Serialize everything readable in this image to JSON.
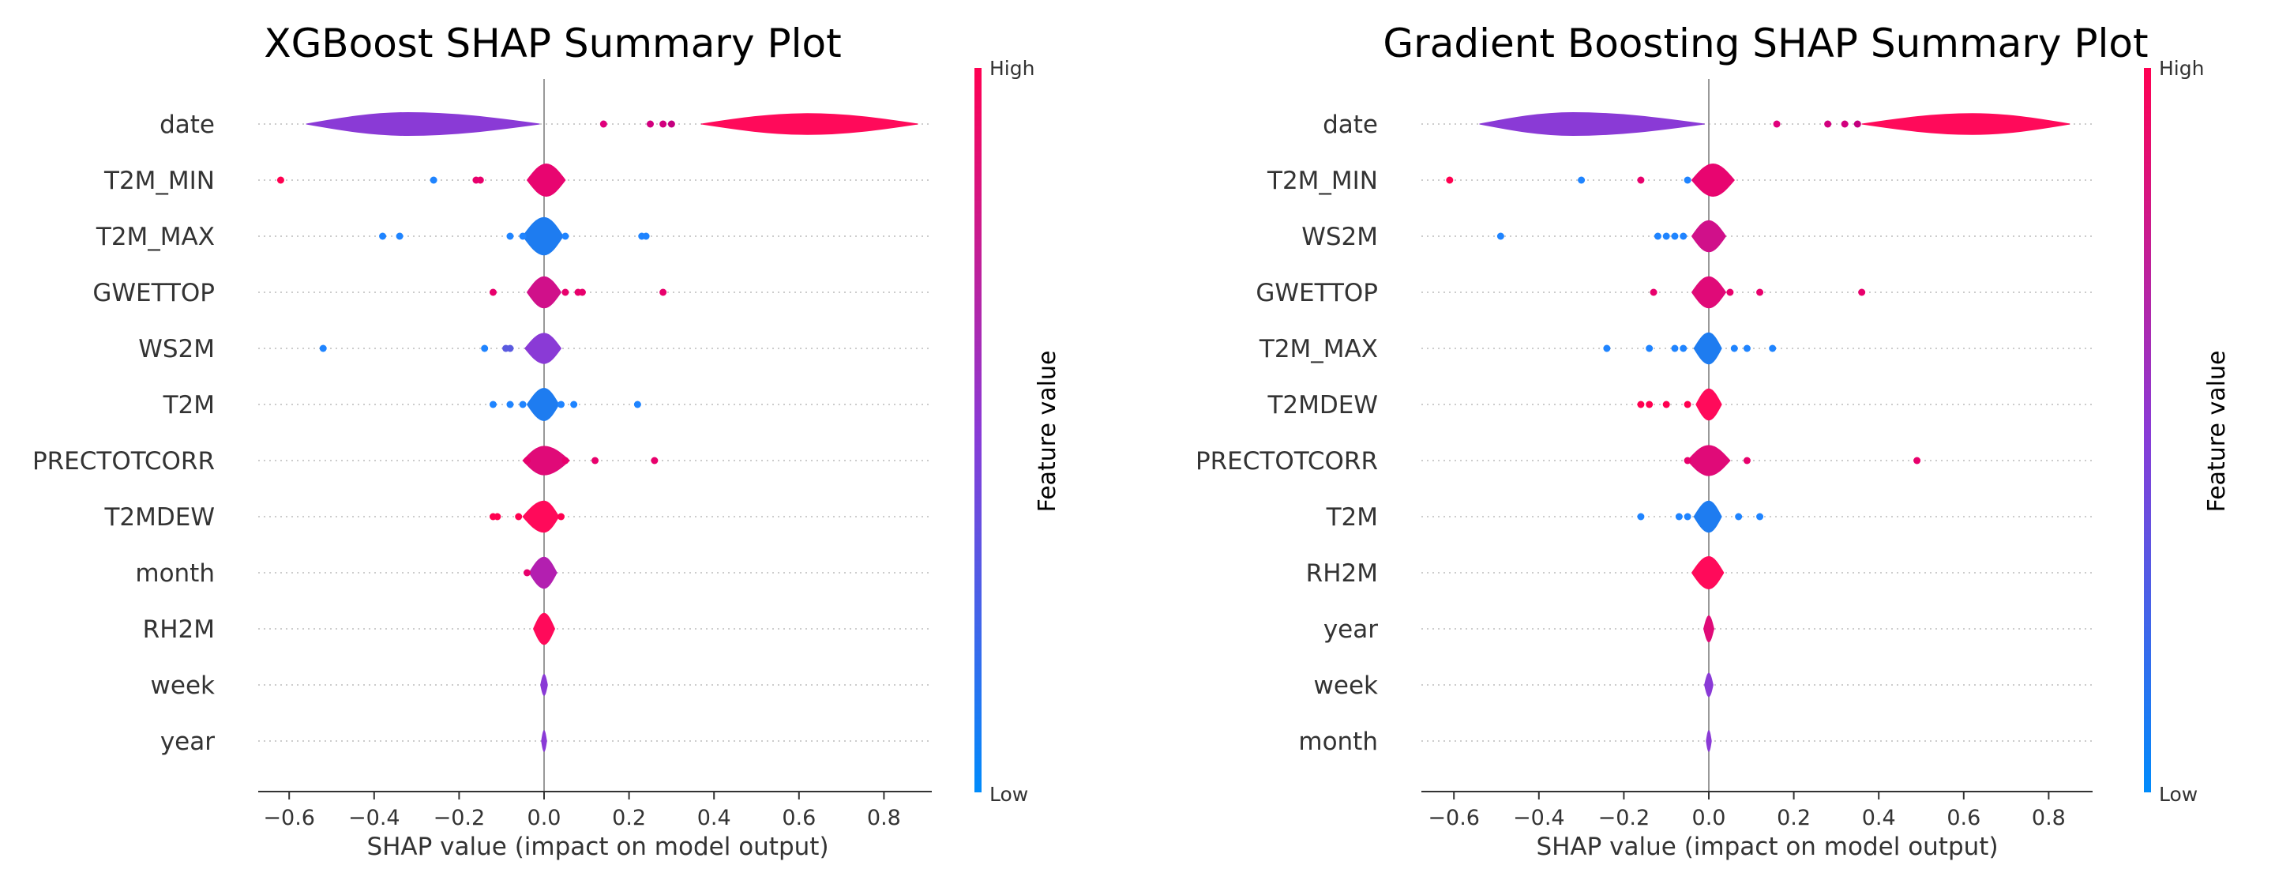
{
  "chart_data": [
    {
      "type": "violin",
      "title": "XGBoost SHAP Summary Plot",
      "xlabel": "SHAP value (impact on model output)",
      "xlim": [
        -0.7,
        0.95
      ],
      "xticks": [
        "−0.6",
        "−0.4",
        "−0.2",
        "0.0",
        "0.2",
        "0.4",
        "0.6",
        "0.8"
      ],
      "xtick_values": [
        -0.6,
        -0.4,
        -0.2,
        0.0,
        0.2,
        0.4,
        0.6,
        0.8
      ],
      "colorbar": {
        "label": "Feature value",
        "high": "High",
        "low": "Low"
      },
      "features": [
        {
          "name": "date",
          "violins": [
            {
              "min": -0.56,
              "max": -0.01,
              "peak": -0.32,
              "half_height": 0.44,
              "color": "#8a3ad6"
            },
            {
              "min": 0.37,
              "max": 0.88,
              "peak": 0.62,
              "half_height": 0.4,
              "color": "#ff0a5a"
            }
          ],
          "points": [
            [
              0.14,
              "#e0007c"
            ],
            [
              0.25,
              "#d2007e"
            ],
            [
              0.28,
              "#d2007e"
            ],
            [
              0.3,
              "#c4007f"
            ]
          ]
        },
        {
          "name": "T2M_MIN",
          "violins": [
            {
              "min": -0.04,
              "max": 0.05,
              "peak": 0.005,
              "half_height": 0.62,
              "color": "#e80570"
            }
          ],
          "points": [
            [
              -0.62,
              "#ff0050"
            ],
            [
              -0.26,
              "#1f84ff"
            ],
            [
              -0.16,
              "#e8006c"
            ],
            [
              -0.15,
              "#e8006c"
            ]
          ]
        },
        {
          "name": "T2M_MAX",
          "violins": [
            {
              "min": -0.05,
              "max": 0.045,
              "peak": 0.0,
              "half_height": 0.72,
              "color": "#1e7cf0"
            }
          ],
          "points": [
            [
              -0.38,
              "#1f84ff"
            ],
            [
              -0.34,
              "#1f84ff"
            ],
            [
              -0.08,
              "#1f84ff"
            ],
            [
              -0.05,
              "#1f84ff"
            ],
            [
              0.05,
              "#1f84ff"
            ],
            [
              0.23,
              "#1f84ff"
            ],
            [
              0.24,
              "#1f84ff"
            ]
          ]
        },
        {
          "name": "GWETTOP",
          "violins": [
            {
              "min": -0.04,
              "max": 0.04,
              "peak": 0.0,
              "half_height": 0.6,
              "color": "#d0108a"
            }
          ],
          "points": [
            [
              -0.12,
              "#e8006c"
            ],
            [
              0.05,
              "#e8006c"
            ],
            [
              0.08,
              "#e8006c"
            ],
            [
              0.09,
              "#e8006c"
            ],
            [
              0.28,
              "#e8006c"
            ]
          ]
        },
        {
          "name": "WS2M",
          "violins": [
            {
              "min": -0.045,
              "max": 0.04,
              "peak": 0.0,
              "half_height": 0.58,
              "color": "#8a3ad6"
            }
          ],
          "points": [
            [
              -0.52,
              "#1f84ff"
            ],
            [
              -0.14,
              "#1f84ff"
            ],
            [
              -0.09,
              "#5a5ae0"
            ],
            [
              -0.08,
              "#5a5ae0"
            ]
          ]
        },
        {
          "name": "T2M",
          "violins": [
            {
              "min": -0.04,
              "max": 0.035,
              "peak": 0.0,
              "half_height": 0.62,
              "color": "#1e7cf0"
            }
          ],
          "points": [
            [
              -0.12,
              "#1f84ff"
            ],
            [
              -0.08,
              "#1f84ff"
            ],
            [
              -0.05,
              "#1f84ff"
            ],
            [
              0.04,
              "#1f84ff"
            ],
            [
              0.07,
              "#1f84ff"
            ],
            [
              0.22,
              "#1f84ff"
            ]
          ]
        },
        {
          "name": "PRECTOTCORR",
          "violins": [
            {
              "min": -0.05,
              "max": 0.06,
              "peak": 0.0,
              "half_height": 0.55,
              "color": "#e00a78"
            }
          ],
          "points": [
            [
              -0.04,
              "#e8006c"
            ],
            [
              0.05,
              "#e8006c"
            ],
            [
              0.12,
              "#e8006c"
            ],
            [
              0.26,
              "#e8006c"
            ]
          ]
        },
        {
          "name": "T2MDEW",
          "violins": [
            {
              "min": -0.05,
              "max": 0.035,
              "peak": 0.0,
              "half_height": 0.6,
              "color": "#ff0a5a"
            }
          ],
          "points": [
            [
              -0.12,
              "#ff0050"
            ],
            [
              -0.11,
              "#ff0050"
            ],
            [
              -0.06,
              "#ff0050"
            ],
            [
              0.04,
              "#ff0050"
            ]
          ]
        },
        {
          "name": "month",
          "violins": [
            {
              "min": -0.035,
              "max": 0.03,
              "peak": 0.0,
              "half_height": 0.6,
              "color": "#b31fb0"
            }
          ],
          "points": [
            [
              -0.04,
              "#e8006c"
            ]
          ]
        },
        {
          "name": "RH2M",
          "violins": [
            {
              "min": -0.025,
              "max": 0.025,
              "peak": 0.0,
              "half_height": 0.6,
              "color": "#ff0a5a"
            }
          ],
          "points": []
        },
        {
          "name": "week",
          "violins": [
            {
              "min": -0.008,
              "max": 0.008,
              "peak": 0.0,
              "half_height": 0.4,
              "color": "#8a3ad6"
            }
          ],
          "points": []
        },
        {
          "name": "year",
          "violins": [
            {
              "min": -0.006,
              "max": 0.006,
              "peak": 0.0,
              "half_height": 0.4,
              "color": "#8a3ad6"
            }
          ],
          "points": []
        }
      ]
    },
    {
      "type": "violin",
      "title": "Gradient Boosting SHAP Summary Plot",
      "xlabel": "SHAP value (impact on model output)",
      "xlim": [
        -0.7,
        0.95
      ],
      "xticks": [
        "−0.6",
        "−0.4",
        "−0.2",
        "0.0",
        "0.2",
        "0.4",
        "0.6",
        "0.8"
      ],
      "xtick_values": [
        -0.6,
        -0.4,
        -0.2,
        0.0,
        0.2,
        0.4,
        0.6,
        0.8
      ],
      "colorbar": {
        "label": "Feature value",
        "high": "High",
        "low": "Low"
      },
      "features": [
        {
          "name": "date",
          "violins": [
            {
              "min": -0.54,
              "max": -0.01,
              "peak": -0.32,
              "half_height": 0.44,
              "color": "#8a3ad6",
              "left_color": "#6a55e0"
            },
            {
              "min": 0.36,
              "max": 0.85,
              "peak": 0.62,
              "half_height": 0.4,
              "color": "#ff0a5a"
            }
          ],
          "points": [
            [
              0.16,
              "#e0007c"
            ],
            [
              0.28,
              "#d2007e"
            ],
            [
              0.32,
              "#d2007e"
            ],
            [
              0.35,
              "#c4007f"
            ]
          ]
        },
        {
          "name": "T2M_MIN",
          "violins": [
            {
              "min": -0.04,
              "max": 0.06,
              "peak": 0.01,
              "half_height": 0.62,
              "color": "#e80570"
            }
          ],
          "points": [
            [
              -0.61,
              "#ff0050"
            ],
            [
              -0.3,
              "#1f84ff"
            ],
            [
              -0.16,
              "#e8006c"
            ],
            [
              -0.05,
              "#1f84ff"
            ]
          ]
        },
        {
          "name": "WS2M",
          "violins": [
            {
              "min": -0.04,
              "max": 0.04,
              "peak": 0.0,
              "half_height": 0.6,
              "color": "#d0108a"
            }
          ],
          "points": [
            [
              -0.49,
              "#1f84ff"
            ],
            [
              -0.12,
              "#1f84ff"
            ],
            [
              -0.1,
              "#1f84ff"
            ],
            [
              -0.08,
              "#1f84ff"
            ],
            [
              -0.06,
              "#1f84ff"
            ]
          ]
        },
        {
          "name": "GWETTOP",
          "violins": [
            {
              "min": -0.04,
              "max": 0.04,
              "peak": 0.0,
              "half_height": 0.6,
              "color": "#e00a78"
            }
          ],
          "points": [
            [
              -0.13,
              "#e8006c"
            ],
            [
              0.05,
              "#e8006c"
            ],
            [
              0.12,
              "#e8006c"
            ],
            [
              0.36,
              "#e8006c"
            ]
          ]
        },
        {
          "name": "T2M_MAX",
          "violins": [
            {
              "min": -0.035,
              "max": 0.03,
              "peak": 0.0,
              "half_height": 0.6,
              "color": "#1e7cf0"
            }
          ],
          "points": [
            [
              -0.24,
              "#1f84ff"
            ],
            [
              -0.14,
              "#1f84ff"
            ],
            [
              -0.08,
              "#1f84ff"
            ],
            [
              -0.06,
              "#1f84ff"
            ],
            [
              0.06,
              "#1f84ff"
            ],
            [
              0.09,
              "#1f84ff"
            ],
            [
              0.15,
              "#1f84ff"
            ]
          ]
        },
        {
          "name": "T2MDEW",
          "violins": [
            {
              "min": -0.03,
              "max": 0.03,
              "peak": 0.0,
              "half_height": 0.6,
              "color": "#ff0a5a"
            }
          ],
          "points": [
            [
              -0.16,
              "#ff0050"
            ],
            [
              -0.14,
              "#ff0050"
            ],
            [
              -0.1,
              "#ff0050"
            ],
            [
              -0.05,
              "#ff0050"
            ]
          ]
        },
        {
          "name": "PRECTOTCORR",
          "violins": [
            {
              "min": -0.05,
              "max": 0.05,
              "peak": 0.0,
              "half_height": 0.58,
              "color": "#e00a78"
            }
          ],
          "points": [
            [
              -0.05,
              "#e8006c"
            ],
            [
              0.09,
              "#e8006c"
            ],
            [
              0.49,
              "#e8006c"
            ]
          ]
        },
        {
          "name": "T2M",
          "violins": [
            {
              "min": -0.035,
              "max": 0.03,
              "peak": 0.0,
              "half_height": 0.6,
              "color": "#1e7cf0"
            }
          ],
          "points": [
            [
              -0.16,
              "#1f84ff"
            ],
            [
              -0.07,
              "#1f84ff"
            ],
            [
              -0.05,
              "#1f84ff"
            ],
            [
              0.07,
              "#1f84ff"
            ],
            [
              0.12,
              "#1f84ff"
            ]
          ]
        },
        {
          "name": "RH2M",
          "violins": [
            {
              "min": -0.04,
              "max": 0.035,
              "peak": 0.0,
              "half_height": 0.62,
              "color": "#ff0a5a"
            }
          ],
          "points": []
        },
        {
          "name": "year",
          "violins": [
            {
              "min": -0.012,
              "max": 0.012,
              "peak": 0.0,
              "half_height": 0.5,
              "color": "#e00a78"
            }
          ],
          "points": []
        },
        {
          "name": "week",
          "violins": [
            {
              "min": -0.01,
              "max": 0.01,
              "peak": 0.0,
              "half_height": 0.45,
              "color": "#8a3ad6"
            }
          ],
          "points": []
        },
        {
          "name": "month",
          "violins": [
            {
              "min": -0.006,
              "max": 0.006,
              "peak": 0.0,
              "half_height": 0.4,
              "color": "#8a3ad6"
            }
          ],
          "points": []
        }
      ]
    }
  ],
  "colors": {
    "high": "#ff0052",
    "low": "#008bfb",
    "axis": "#333333",
    "grid": "#cccccc"
  }
}
